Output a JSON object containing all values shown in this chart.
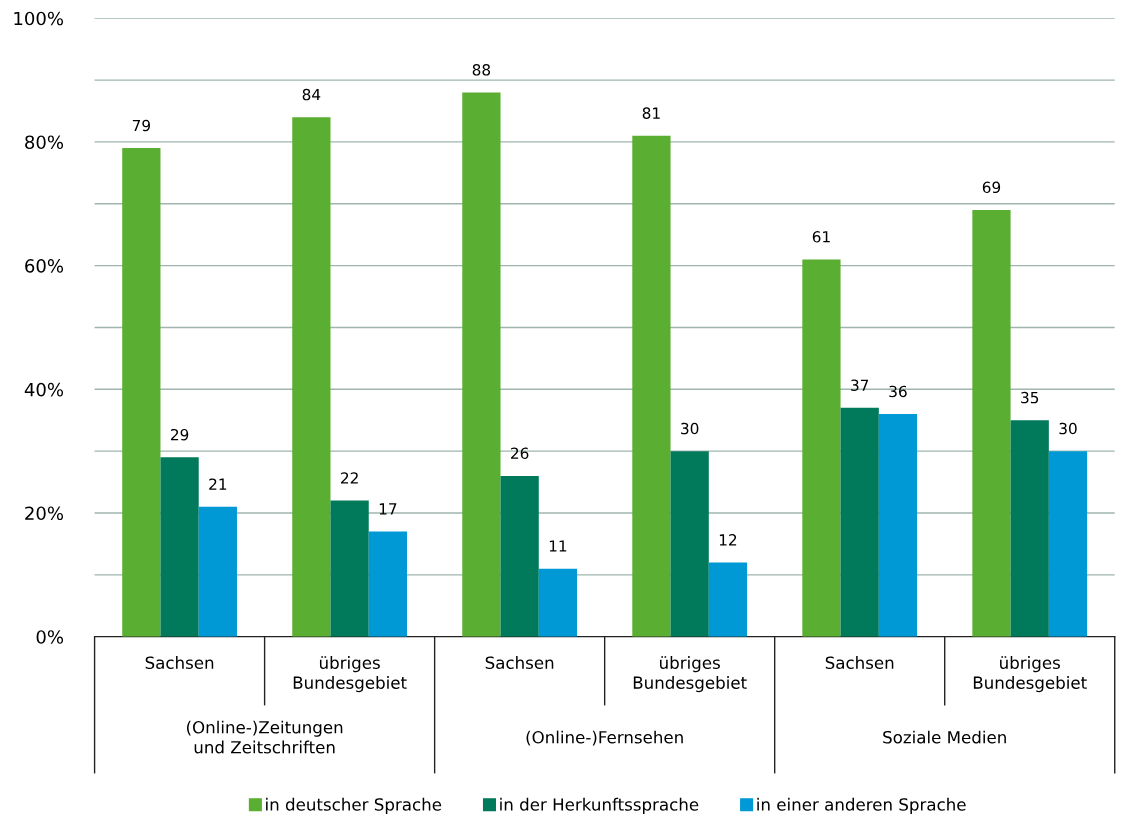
{
  "chart_data": {
    "type": "bar",
    "categories": [
      "Sachsen",
      "übriges\nBundesgebiet",
      "Sachsen",
      "übriges\nBundesgebiet",
      "Sachsen",
      "übriges\nBundesgebiet"
    ],
    "annotations": [
      "(Online-)Zeitungen\nund Zeitschriften",
      "(Online-)Fernsehen",
      "Soziale Medien"
    ],
    "series": [
      {
        "name": "in deutscher Sprache",
        "color": "#5aaf32",
        "values": [
          79,
          84,
          88,
          81,
          61,
          69
        ]
      },
      {
        "name": "in der Herkunftssprache",
        "color": "#007a5a",
        "values": [
          29,
          22,
          26,
          30,
          37,
          35
        ]
      },
      {
        "name": "in einer anderen Sprache",
        "color": "#0099d6",
        "values": [
          21,
          17,
          11,
          12,
          36,
          30
        ]
      }
    ],
    "ylim": [
      0,
      100
    ],
    "yticks": [
      {
        "value": 0,
        "label": "0%"
      },
      {
        "value": 10,
        "label": null
      },
      {
        "value": 20,
        "label": "20%"
      },
      {
        "value": 30,
        "label": null
      },
      {
        "value": 40,
        "label": "40%"
      },
      {
        "value": 50,
        "label": null
      },
      {
        "value": 60,
        "label": "60%"
      },
      {
        "value": 70,
        "label": null
      },
      {
        "value": 80,
        "label": "80%"
      },
      {
        "value": 90,
        "label": null
      },
      {
        "value": 100,
        "label": "100%"
      }
    ],
    "grid": "y",
    "data_labels": true,
    "legend": "bottom"
  }
}
